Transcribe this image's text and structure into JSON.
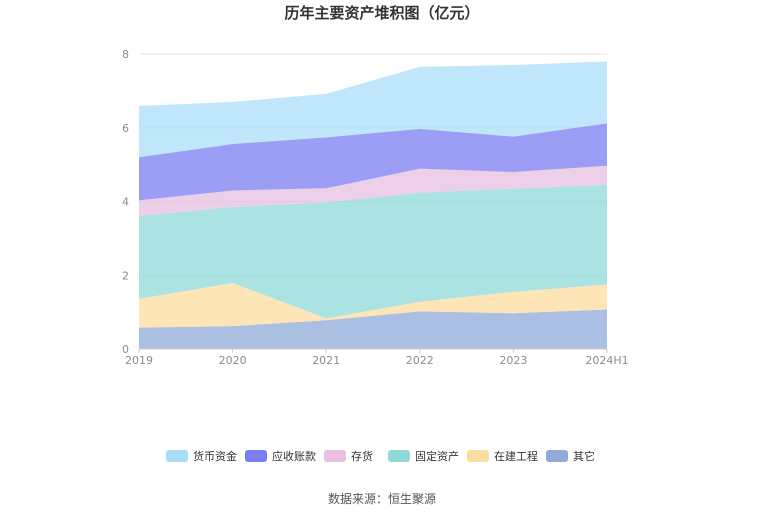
{
  "chart_data": {
    "type": "area",
    "stacked": true,
    "title": "历年主要资产堆积图（亿元）",
    "categories": [
      "2019",
      "2020",
      "2021",
      "2022",
      "2023",
      "2024H1"
    ],
    "ylim": [
      0,
      8
    ],
    "yticks": [
      "0",
      "2",
      "4",
      "6",
      "8"
    ],
    "grid": true,
    "legend_position": "bottom",
    "series": [
      {
        "name": "其它",
        "color": "#8fa9d8",
        "values": [
          0.58,
          0.62,
          0.78,
          1.02,
          0.97,
          1.07
        ]
      },
      {
        "name": "在建工程",
        "color": "#fddca0",
        "values": [
          0.78,
          1.17,
          0.05,
          0.26,
          0.58,
          0.68
        ]
      },
      {
        "name": "固定资产",
        "color": "#8fdad8",
        "values": [
          2.25,
          2.06,
          3.15,
          2.96,
          2.8,
          2.7
        ]
      },
      {
        "name": "存货",
        "color": "#e8bfe0",
        "values": [
          0.42,
          0.45,
          0.38,
          0.65,
          0.45,
          0.52
        ]
      },
      {
        "name": "应收账款",
        "color": "#7a7ef0",
        "values": [
          1.17,
          1.26,
          1.38,
          1.08,
          0.96,
          1.15
        ]
      },
      {
        "name": "货币资金",
        "color": "#a9def8",
        "values": [
          1.39,
          1.14,
          1.18,
          1.68,
          1.94,
          1.68
        ]
      }
    ],
    "legend_order": [
      "货币资金",
      "应收账款",
      "存货",
      "固定资产",
      "在建工程",
      "其它"
    ]
  },
  "source_text": "数据来源：恒生聚源"
}
